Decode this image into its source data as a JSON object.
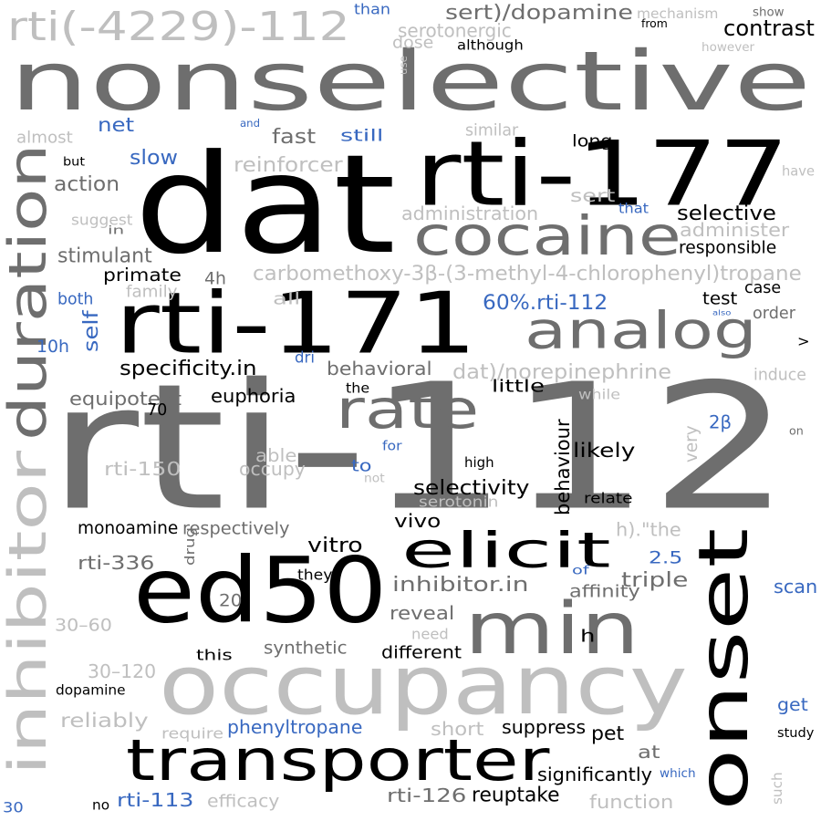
{
  "colors": {
    "dark_gray": "#6e6e6e",
    "black": "#000000",
    "light_gray": "#bfbfbf",
    "blue": "#3868c0"
  },
  "words": [
    {
      "t": "rti-112",
      "c": "dark_gray"
    },
    {
      "t": "nonselective",
      "c": "dark_gray"
    },
    {
      "t": "dat",
      "c": "black"
    },
    {
      "t": "rti-177",
      "c": "black"
    },
    {
      "t": "rti-171",
      "c": "black"
    },
    {
      "t": "ed50",
      "c": "black"
    },
    {
      "t": "occupancy",
      "c": "light_gray"
    },
    {
      "t": "min",
      "c": "dark_gray"
    },
    {
      "t": "onset",
      "c": "black"
    },
    {
      "t": "duration",
      "c": "dark_gray"
    },
    {
      "t": "inhibitor",
      "c": "light_gray"
    },
    {
      "t": "cocaine",
      "c": "dark_gray"
    },
    {
      "t": "analog",
      "c": "dark_gray"
    },
    {
      "t": "transporter",
      "c": "black"
    },
    {
      "t": "elicit",
      "c": "black"
    },
    {
      "t": "rate",
      "c": "dark_gray"
    },
    {
      "t": "rti(-4229)-112",
      "c": "light_gray"
    },
    {
      "t": "sert)/dopamine",
      "c": "dark_gray"
    },
    {
      "t": "than",
      "c": "blue"
    },
    {
      "t": "mechanism",
      "c": "light_gray"
    },
    {
      "t": "show",
      "c": "dark_gray"
    },
    {
      "t": "contrast",
      "c": "black"
    },
    {
      "t": "from",
      "c": "black"
    },
    {
      "t": "serotonergic",
      "c": "light_gray"
    },
    {
      "t": "dose",
      "c": "light_gray"
    },
    {
      "t": "although",
      "c": "black"
    },
    {
      "t": "use",
      "c": "light_gray"
    },
    {
      "t": "however",
      "c": "light_gray"
    },
    {
      "t": "net",
      "c": "blue"
    },
    {
      "t": "and",
      "c": "blue"
    },
    {
      "t": "similar",
      "c": "light_gray"
    },
    {
      "t": "almost",
      "c": "light_gray"
    },
    {
      "t": "fast",
      "c": "dark_gray"
    },
    {
      "t": "still",
      "c": "blue"
    },
    {
      "t": "long",
      "c": "black"
    },
    {
      "t": "slow",
      "c": "blue"
    },
    {
      "t": "but",
      "c": "black"
    },
    {
      "t": "reinforcer",
      "c": "light_gray"
    },
    {
      "t": "have",
      "c": "light_gray"
    },
    {
      "t": "action",
      "c": "dark_gray"
    },
    {
      "t": "sert",
      "c": "light_gray"
    },
    {
      "t": "that",
      "c": "blue"
    },
    {
      "t": "selective",
      "c": "black"
    },
    {
      "t": "suggest",
      "c": "light_gray"
    },
    {
      "t": "in",
      "c": "dark_gray"
    },
    {
      "t": "administration",
      "c": "light_gray"
    },
    {
      "t": "administer",
      "c": "light_gray"
    },
    {
      "t": "responsible",
      "c": "black"
    },
    {
      "t": "stimulant",
      "c": "dark_gray"
    },
    {
      "t": "primate",
      "c": "black"
    },
    {
      "t": "4h",
      "c": "dark_gray"
    },
    {
      "t": "carbomethoxy-3β-(3-methyl-4-chlorophenyl)tropane",
      "c": "light_gray"
    },
    {
      "t": "family",
      "c": "light_gray"
    },
    {
      "t": "case",
      "c": "black"
    },
    {
      "t": "both",
      "c": "blue"
    },
    {
      "t": "all",
      "c": "light_gray"
    },
    {
      "t": "60%.rti-112",
      "c": "blue"
    },
    {
      "t": "test",
      "c": "black"
    },
    {
      "t": "also",
      "c": "blue"
    },
    {
      "t": "order",
      "c": "dark_gray"
    },
    {
      "t": "self",
      "c": "blue"
    },
    {
      "t": "10h",
      "c": "blue"
    },
    {
      "t": "dri",
      "c": "blue"
    },
    {
      "t": ">",
      "c": "black"
    },
    {
      "t": "specificity.in",
      "c": "black"
    },
    {
      "t": "behavioral",
      "c": "dark_gray"
    },
    {
      "t": "dat)/norepinephrine",
      "c": "light_gray"
    },
    {
      "t": "induce",
      "c": "light_gray"
    },
    {
      "t": "little",
      "c": "black"
    },
    {
      "t": "the",
      "c": "black"
    },
    {
      "t": "equipotent",
      "c": "dark_gray"
    },
    {
      "t": "euphoria",
      "c": "black"
    },
    {
      "t": "while",
      "c": "light_gray"
    },
    {
      "t": "70",
      "c": "black"
    },
    {
      "t": "2β",
      "c": "blue"
    },
    {
      "t": "on",
      "c": "dark_gray"
    },
    {
      "t": "very",
      "c": "light_gray"
    },
    {
      "t": "able",
      "c": "light_gray"
    },
    {
      "t": "for",
      "c": "blue"
    },
    {
      "t": "likely",
      "c": "black"
    },
    {
      "t": "rti-150",
      "c": "light_gray"
    },
    {
      "t": "occupy",
      "c": "light_gray"
    },
    {
      "t": "to",
      "c": "blue"
    },
    {
      "t": "not",
      "c": "light_gray"
    },
    {
      "t": "high",
      "c": "black"
    },
    {
      "t": "behaviour",
      "c": "black"
    },
    {
      "t": "selectivity",
      "c": "black"
    },
    {
      "t": "serotonin",
      "c": "light_gray"
    },
    {
      "t": "relate",
      "c": "black"
    },
    {
      "t": "monoamine",
      "c": "black"
    },
    {
      "t": "respectively",
      "c": "dark_gray"
    },
    {
      "t": "vivo",
      "c": "black"
    },
    {
      "t": "h).\"the",
      "c": "light_gray"
    },
    {
      "t": "drug",
      "c": "dark_gray"
    },
    {
      "t": "rti-336",
      "c": "dark_gray"
    },
    {
      "t": "vitro",
      "c": "black"
    },
    {
      "t": "2.5",
      "c": "blue"
    },
    {
      "t": "they",
      "c": "black"
    },
    {
      "t": "inhibitor.in",
      "c": "dark_gray"
    },
    {
      "t": "triple",
      "c": "dark_gray"
    },
    {
      "t": "of",
      "c": "blue"
    },
    {
      "t": "scan",
      "c": "blue"
    },
    {
      "t": "affinity",
      "c": "dark_gray"
    },
    {
      "t": "20",
      "c": "dark_gray"
    },
    {
      "t": "30–60",
      "c": "light_gray"
    },
    {
      "t": "reveal",
      "c": "dark_gray"
    },
    {
      "t": "need",
      "c": "light_gray"
    },
    {
      "t": "h",
      "c": "black"
    },
    {
      "t": "synthetic",
      "c": "dark_gray"
    },
    {
      "t": "this",
      "c": "black"
    },
    {
      "t": "different",
      "c": "black"
    },
    {
      "t": "30–120",
      "c": "light_gray"
    },
    {
      "t": "dopamine",
      "c": "black"
    },
    {
      "t": "get",
      "c": "blue"
    },
    {
      "t": "reliably",
      "c": "light_gray"
    },
    {
      "t": "require",
      "c": "light_gray"
    },
    {
      "t": "phenyltropane",
      "c": "blue"
    },
    {
      "t": "short",
      "c": "light_gray"
    },
    {
      "t": "suppress",
      "c": "black"
    },
    {
      "t": "pet",
      "c": "black"
    },
    {
      "t": "study",
      "c": "black"
    },
    {
      "t": "at",
      "c": "dark_gray"
    },
    {
      "t": "significantly",
      "c": "black"
    },
    {
      "t": "which",
      "c": "blue"
    },
    {
      "t": "such",
      "c": "light_gray"
    },
    {
      "t": "30",
      "c": "blue"
    },
    {
      "t": "no",
      "c": "black"
    },
    {
      "t": "rti-113",
      "c": "blue"
    },
    {
      "t": "efficacy",
      "c": "light_gray"
    },
    {
      "t": "rti-126",
      "c": "dark_gray"
    },
    {
      "t": "reuptake",
      "c": "black"
    },
    {
      "t": "function",
      "c": "light_gray"
    }
  ]
}
